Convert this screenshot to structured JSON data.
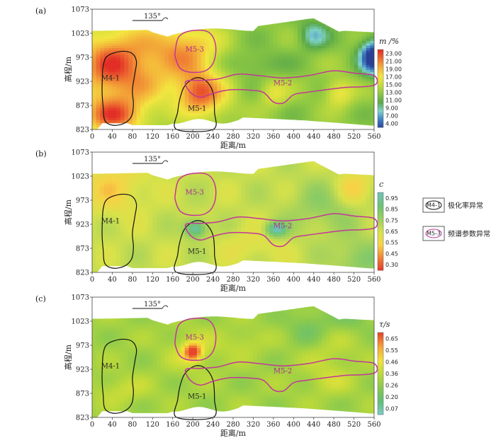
{
  "chart_data": [
    {
      "type": "heatmap",
      "panel_label": "(a)",
      "direction_label": "135°",
      "xlabel": "距离/m",
      "ylabel": "高程/m",
      "xlim": [
        0,
        560
      ],
      "ylim": [
        823,
        1073
      ],
      "x_ticks": [
        0,
        40,
        80,
        120,
        160,
        200,
        240,
        280,
        320,
        360,
        400,
        440,
        480,
        520,
        560
      ],
      "y_ticks": [
        823,
        873,
        923,
        973,
        1023,
        1073
      ],
      "colorbar_title": "m /%",
      "colorbar_ticks": [
        "23.00",
        "21.00",
        "19.00",
        "17.00",
        "15.00",
        "13.00",
        "11.00",
        "9.00",
        "7.00",
        "4.00"
      ],
      "anomaly_labels": [
        "M4-1",
        "M5-3",
        "M5-2",
        "M5-1"
      ]
    },
    {
      "type": "heatmap",
      "panel_label": "(b)",
      "direction_label": "135°",
      "xlabel": "距离/m",
      "ylabel": "高程/m",
      "xlim": [
        0,
        560
      ],
      "ylim": [
        823,
        1073
      ],
      "x_ticks": [
        0,
        40,
        80,
        120,
        160,
        200,
        240,
        280,
        320,
        360,
        400,
        440,
        480,
        520,
        560
      ],
      "y_ticks": [
        823,
        873,
        923,
        973,
        1023,
        1073
      ],
      "colorbar_title": "c",
      "colorbar_ticks": [
        "0.95",
        "0.85",
        "0.75",
        "0.65",
        "0.55",
        "0.45",
        "0.30"
      ],
      "anomaly_labels": [
        "M4-1",
        "M5-3",
        "M5-2",
        "M5-1"
      ]
    },
    {
      "type": "heatmap",
      "panel_label": "(c)",
      "direction_label": "135°",
      "xlabel": "距离/m",
      "ylabel": "高程/m",
      "xlim": [
        0,
        560
      ],
      "ylim": [
        823,
        1073
      ],
      "x_ticks": [
        0,
        40,
        80,
        120,
        160,
        200,
        240,
        280,
        320,
        360,
        400,
        440,
        480,
        520,
        560
      ],
      "y_ticks": [
        823,
        873,
        923,
        973,
        1023,
        1073
      ],
      "colorbar_title": "τ/s",
      "colorbar_ticks": [
        "0.65",
        "0.55",
        "0.46",
        "0.36",
        "0.26",
        "0.20",
        "0.07"
      ],
      "anomaly_labels": [
        "M4-1",
        "M5-3",
        "M5-2",
        "M5-1"
      ]
    }
  ],
  "legend": {
    "items": [
      {
        "symbol_text": "M4-1",
        "label": "极化率异常",
        "color": "#111111"
      },
      {
        "symbol_text": "M5-3",
        "label": "频谱参数异常",
        "color": "#c2369a"
      }
    ]
  },
  "colors": {
    "polarization_outline": "#111111",
    "spectral_outline": "#c2369a",
    "label_dark": "#222222",
    "label_magenta": "#b02a8a"
  }
}
